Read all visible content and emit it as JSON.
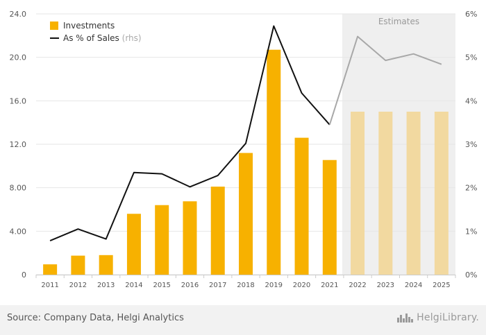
{
  "chart_data": {
    "type": "bar+line",
    "categories": [
      "2011",
      "2012",
      "2013",
      "2014",
      "2015",
      "2016",
      "2017",
      "2018",
      "2019",
      "2020",
      "2021",
      "2022",
      "2023",
      "2024",
      "2025"
    ],
    "estimate_from_index": 11,
    "estimates_label": "Estimates",
    "series": [
      {
        "name": "Investments",
        "type": "bar",
        "axis": "left",
        "color": "#f7b100",
        "estimate_color": "#f2d9a0",
        "values": [
          0.95,
          1.75,
          1.8,
          5.6,
          6.4,
          6.75,
          8.1,
          11.2,
          20.7,
          12.6,
          10.55,
          15.0,
          15.0,
          15.0,
          15.0
        ]
      },
      {
        "name": "As % of Sales",
        "name_suffix": "(rhs)",
        "type": "line",
        "axis": "right",
        "color": "#111111",
        "estimate_color": "#a8a8a8",
        "values": [
          0.78,
          1.05,
          0.82,
          2.35,
          2.32,
          2.02,
          2.28,
          3.02,
          5.72,
          4.18,
          3.45,
          5.48,
          4.93,
          5.08,
          4.84
        ]
      }
    ],
    "y_left": {
      "min": 0,
      "max": 24,
      "ticks": [
        "0",
        "4.00",
        "8.00",
        "12.0",
        "16.0",
        "20.0",
        "24.0"
      ]
    },
    "y_right": {
      "min": 0,
      "max": 6,
      "ticks": [
        "0%",
        "1%",
        "2%",
        "3%",
        "4%",
        "5%",
        "6%"
      ]
    },
    "legend_position": "top-left",
    "grid": true
  },
  "footer": {
    "source": "Source: Company Data, Helgi Analytics",
    "brand": "HelgiLibrary."
  },
  "colors": {
    "estimate_band": "#efefef",
    "grid": "#e6e6e6",
    "footer_bg": "#f2f2f2"
  }
}
